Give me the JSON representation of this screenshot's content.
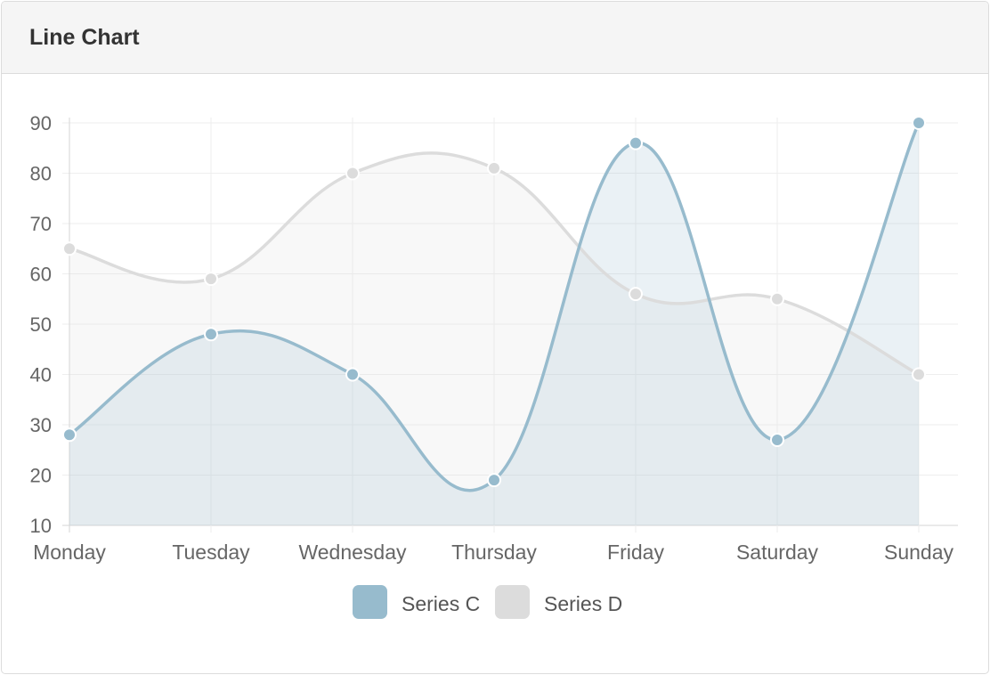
{
  "panel": {
    "title": "Line Chart"
  },
  "chart_data": {
    "type": "area",
    "categories": [
      "Monday",
      "Tuesday",
      "Wednesday",
      "Thursday",
      "Friday",
      "Saturday",
      "Sunday"
    ],
    "series": [
      {
        "name": "Series C",
        "values": [
          28,
          48,
          40,
          19,
          86,
          27,
          90
        ],
        "color": "#97bbcd",
        "fill": "rgba(151,187,205,0.2)"
      },
      {
        "name": "Series D",
        "values": [
          65,
          59,
          80,
          81,
          56,
          55,
          40
        ],
        "color": "#dcdcdc",
        "fill": "rgba(220,220,220,0.2)"
      }
    ],
    "yticks": [
      10,
      20,
      30,
      40,
      50,
      60,
      70,
      80,
      90
    ],
    "ylim": [
      10,
      90
    ],
    "grid": true,
    "legend_position": "bottom",
    "title": "",
    "xlabel": "",
    "ylabel": ""
  }
}
